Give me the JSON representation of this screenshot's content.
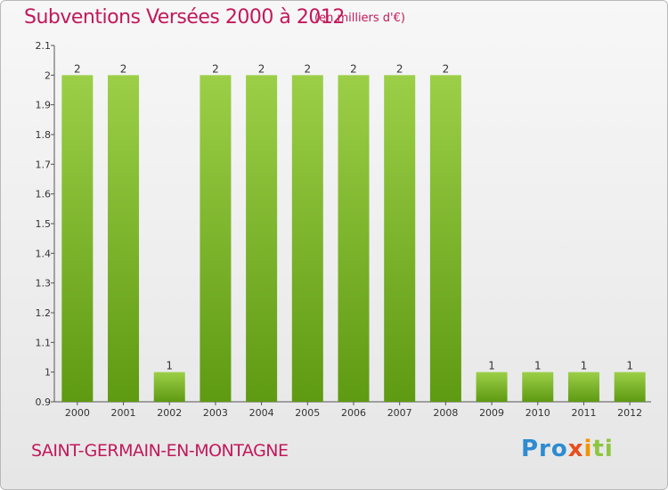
{
  "header": {
    "title": "Subventions Versées 2000 à 2012",
    "subtitle": "(en milliers d'€)"
  },
  "footer": {
    "commune": "SAINT-GERMAIN-EN-MONTAGNE",
    "brand": "Proxiti"
  },
  "colors": {
    "title": "#c2185b",
    "bar_light": "#9ccf48",
    "bar_dark": "#5e9a12"
  },
  "chart_data": {
    "type": "bar",
    "title": "Subventions Versées 2000 à 2012",
    "subtitle": "(en milliers d'€)",
    "categories": [
      "2000",
      "2001",
      "2002",
      "2003",
      "2004",
      "2005",
      "2006",
      "2007",
      "2008",
      "2009",
      "2010",
      "2011",
      "2012"
    ],
    "values": [
      2,
      2,
      1,
      2,
      2,
      2,
      2,
      2,
      2,
      1,
      1,
      1,
      1
    ],
    "data_labels": [
      "2",
      "2",
      "1",
      "2",
      "2",
      "2",
      "2",
      "2",
      "2",
      "1",
      "1",
      "1",
      "1"
    ],
    "ylim": [
      0.9,
      2.1
    ],
    "yticks": [
      0.9,
      1,
      1.1,
      1.2,
      1.3,
      1.4,
      1.5,
      1.6,
      1.7,
      1.8,
      1.9,
      2,
      2.1
    ],
    "ytick_labels": [
      "0.9",
      "1",
      "1.1",
      "1.2",
      "1.3",
      "1.4",
      "1.5",
      "1.6",
      "1.7",
      "1.8",
      "1.9",
      "2",
      "2.1"
    ],
    "grid": false,
    "legend": "none",
    "xlabel": "",
    "ylabel": ""
  }
}
